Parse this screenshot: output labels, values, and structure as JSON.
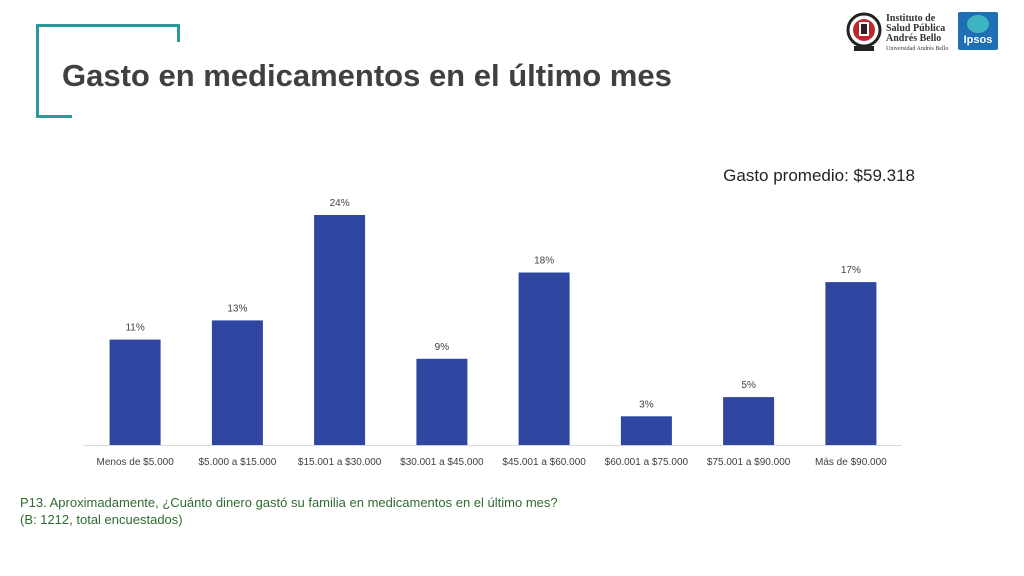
{
  "slide": {
    "title": "Gasto en medicamentos en el último mes",
    "average_label": "Gasto promedio: $59.318",
    "question": "P13. Aproximadamente, ¿Cuánto dinero gastó su familia en medicamentos en el último mes?",
    "base": "(B: 1212, total encuestados)",
    "accent_color": "#2a9a9a"
  },
  "logos": {
    "institute": {
      "line1": "Instituto de",
      "line2": "Salud Pública",
      "line3": "Andrés Bello",
      "line4": "Universidad Andrés Bello"
    },
    "ipsos": {
      "text": "Ipsos",
      "color": "#1f6fb4"
    }
  },
  "chart_data": {
    "type": "bar",
    "categories": [
      "Menos de $5.000",
      "$5.000 a $15.000",
      "$15.001 a $30.000",
      "$30.001 a $45.000",
      "$45.001 a $60.000",
      "$60.001 a $75.000",
      "$75.001 a $90.000",
      "Más de $90.000"
    ],
    "values": [
      11,
      13,
      24,
      9,
      18,
      3,
      5,
      17
    ],
    "data_labels": [
      "11%",
      "13%",
      "24%",
      "9%",
      "18%",
      "3%",
      "5%",
      "17%"
    ],
    "color": "#2e46a0",
    "ylim": [
      0,
      24
    ],
    "grid": false,
    "legend": "none"
  }
}
